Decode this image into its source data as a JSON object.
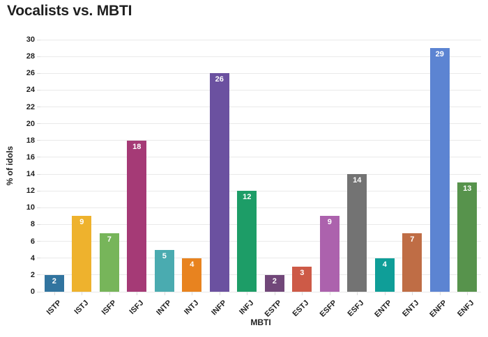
{
  "chart_data": {
    "type": "bar",
    "title": "Vocalists vs. MBTI",
    "xlabel": "MBTI",
    "ylabel": "% of idols",
    "categories": [
      "ISTP",
      "ISTJ",
      "ISFP",
      "ISFJ",
      "INTP",
      "INTJ",
      "INFP",
      "INFJ",
      "ESTP",
      "ESTJ",
      "ESFP",
      "ESFJ",
      "ENTP",
      "ENTJ",
      "ENFP",
      "ENFJ"
    ],
    "values": [
      2,
      9,
      7,
      18,
      5,
      4,
      26,
      12,
      2,
      3,
      9,
      14,
      4,
      7,
      29,
      13
    ],
    "bar_colors": [
      "#31749f",
      "#eeb22d",
      "#77b55a",
      "#a53a76",
      "#4aabb0",
      "#e8831f",
      "#6b51a0",
      "#1d9d67",
      "#714779",
      "#cd5a47",
      "#ac62ad",
      "#737373",
      "#0f9e98",
      "#bf6d45",
      "#5c84d2",
      "#57934c"
    ],
    "value_labels": [
      "2",
      "9",
      "7",
      "18",
      "5",
      "4",
      "26",
      "12",
      "2",
      "3",
      "9",
      "14",
      "4",
      "7",
      "29",
      "13"
    ],
    "ylim": [
      0,
      30
    ],
    "ytick_step": 2,
    "ytick_labels": [
      "0",
      "2",
      "4",
      "6",
      "8",
      "10",
      "12",
      "14",
      "16",
      "18",
      "20",
      "22",
      "24",
      "26",
      "28",
      "30"
    ],
    "grid": true,
    "legend": "none",
    "colors": {
      "value_label": "#ffffff",
      "gridline": "#e9e9e9",
      "tick_mark": "#dcdcdc",
      "axis_text": "#1f1f1f",
      "title": "#202020",
      "background": "#ffffff"
    }
  }
}
